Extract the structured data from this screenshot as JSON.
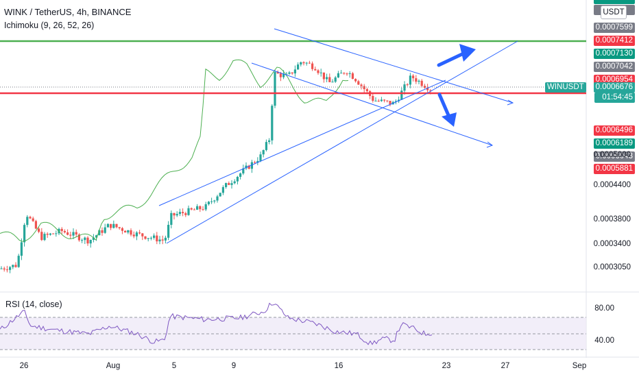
{
  "header": {
    "title": "WINK / TetherUS, 4h, BINANCE",
    "indicator": "Ichimoku (9, 26, 52, 26)",
    "currency_button": "USDT"
  },
  "rsi": {
    "label": "RSI (14, close)",
    "ticks": [
      "80.00",
      "40.00"
    ],
    "line_color": "#7e57c2",
    "band_color": "#ede7f6"
  },
  "price_tags": [
    {
      "text": "0.0007599",
      "color": "#787b86"
    },
    {
      "text": "0.0007412",
      "color": "#f23645"
    },
    {
      "text": "0.0007130",
      "color": "#089981"
    },
    {
      "text": "0.0007042",
      "color": "#787b86"
    },
    {
      "text": "0.0006954",
      "color": "#f23645"
    },
    {
      "text": "0.0006496",
      "color": "#f23645"
    },
    {
      "text": "0.0006189",
      "color": "#089981"
    },
    {
      "text": "0.0006043",
      "color": "#787b86"
    },
    {
      "text": "0.0005881",
      "color": "#f23645"
    }
  ],
  "current": {
    "symbol": "WINUSDT",
    "price": "0.0006676",
    "countdown": "01:54:45",
    "color": "#26a69a"
  },
  "axis_labels": [
    "0.0005000",
    "0.0004400",
    "0.0003800",
    "0.0003400",
    "0.0003050"
  ],
  "date_labels": [
    "26",
    "Aug",
    "5",
    "9",
    "16",
    "23",
    "27",
    "Sep"
  ],
  "colors": {
    "up": "#26a69a",
    "down": "#ef5350",
    "ichimoku": "#4caf50",
    "trend": "#2962ff",
    "support": "#f23645",
    "resistance": "#4caf50"
  },
  "chart_data": {
    "type": "candlestick",
    "symbol": "WINK / TetherUS",
    "interval": "4h",
    "exchange": "BINANCE",
    "y_scale": "log",
    "ylim": [
      0.00029,
      0.00082
    ],
    "horizontal_levels": [
      {
        "price": 0.0007412,
        "color": "#4caf50"
      },
      {
        "price": 0.0006676,
        "color": "#787b86",
        "style": "dotted"
      },
      {
        "price": 0.00065,
        "color": "#f23645"
      }
    ],
    "annotations": [
      "up arrow (breakout)",
      "down arrow (breakdown)",
      "ascending channel",
      "descending channel"
    ],
    "ohlc_summary": {
      "start": 0.00031,
      "early_aug_range": [
        0.00034,
        0.00039
      ],
      "breakout_low": 0.00034,
      "peak": 0.00078,
      "last": 0.0006676
    },
    "rsi_range": [
      30,
      90
    ]
  }
}
